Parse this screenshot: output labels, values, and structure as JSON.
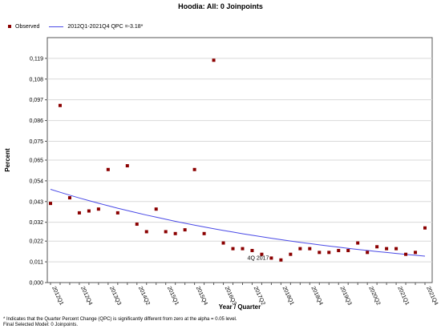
{
  "chart_data": {
    "type": "scatter",
    "title": "Hoodia: All: 0 Joinpoints",
    "xlabel": "Year / Quarter",
    "ylabel": "Percent",
    "ylim": [
      0,
      0.13
    ],
    "y_ticks": [
      "0,000",
      "0,011",
      "0,022",
      "0,032",
      "0,043",
      "0,054",
      "0,065",
      "0,075",
      "0,086",
      "0,097",
      "0,108",
      "0,119"
    ],
    "y_tick_values": [
      0,
      0.011,
      0.022,
      0.032,
      0.043,
      0.054,
      0.065,
      0.075,
      0.086,
      0.097,
      0.108,
      0.119
    ],
    "x_tick_labels": [
      {
        "label": "2012Q1",
        "index": 0
      },
      {
        "label": "2012Q4",
        "index": 3
      },
      {
        "label": "2013Q3",
        "index": 6
      },
      {
        "label": "2014Q2",
        "index": 9
      },
      {
        "label": "2015Q1",
        "index": 12
      },
      {
        "label": "2015Q4",
        "index": 15
      },
      {
        "label": "2016Q3",
        "index": 18
      },
      {
        "label": "2017Q2",
        "index": 21
      },
      {
        "label": "2018Q1",
        "index": 24
      },
      {
        "label": "2018Q4",
        "index": 27
      },
      {
        "label": "2019Q3",
        "index": 30
      },
      {
        "label": "2020Q2",
        "index": 33
      },
      {
        "label": "2021Q1",
        "index": 36
      },
      {
        "label": "2021Q4",
        "index": 39
      }
    ],
    "grid": true,
    "legend_position": "top-left",
    "series": [
      {
        "name": "Observed",
        "kind": "points",
        "color": "#8b0000",
        "values": [
          0.042,
          0.094,
          0.045,
          0.037,
          0.038,
          0.039,
          0.06,
          0.037,
          0.062,
          0.031,
          0.027,
          0.039,
          0.027,
          0.026,
          0.028,
          0.06,
          0.026,
          0.118,
          0.021,
          0.018,
          0.018,
          0.017,
          0.015,
          0.013,
          0.012,
          0.015,
          0.018,
          0.018,
          0.016,
          0.016,
          0.017,
          0.017,
          0.021,
          0.016,
          0.019,
          0.018,
          0.018,
          0.015,
          0.016,
          0.029
        ]
      },
      {
        "name": "2012Q1-2021Q4 QPC =-3.18*",
        "kind": "line",
        "color": "#4a4ae6",
        "model": "exponential",
        "start_value": 0.0495,
        "qpc": -3.18
      }
    ],
    "annotations": [
      {
        "text": "4Q 2017",
        "index": 23,
        "y": 0.013
      }
    ]
  },
  "legend": {
    "observed_label": "Observed",
    "model_label": "2012Q1-2021Q4 QPC =-3.18*"
  },
  "footnote": "* Indicates that the Quarter Percent Change (QPC) is significantly different from zero at the alpha = 0.05 level.\nFinal Selected Model: 0 Joinpoints."
}
